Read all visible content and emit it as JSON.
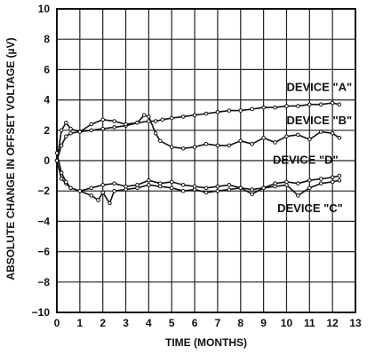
{
  "chart_data": {
    "type": "line",
    "title": "",
    "xlabel": "TIME (MONTHS)",
    "ylabel": "ABSOLUTE CHANGE IN OFFSET VOLTAGE (µV)",
    "xlim": [
      0,
      13
    ],
    "ylim": [
      -10,
      10
    ],
    "x_ticks": [
      "0",
      "1",
      "2",
      "3",
      "4",
      "5",
      "6",
      "7",
      "8",
      "9",
      "10",
      "11",
      "12",
      "13"
    ],
    "y_ticks": [
      "−10",
      "−8",
      "−6",
      "−4",
      "−2",
      "0",
      "2",
      "4",
      "6",
      "8",
      "10"
    ],
    "grid": true,
    "legend": "inline labels",
    "series": [
      {
        "name": "DEVICE \"A\"",
        "label_at": [
          10.0,
          4.6
        ],
        "x": [
          0,
          0.2,
          0.4,
          0.6,
          1.0,
          1.5,
          2.0,
          2.5,
          3.0,
          3.5,
          4.0,
          4.3,
          4.6,
          5.0,
          5.5,
          6.0,
          6.5,
          7.0,
          7.5,
          8.0,
          8.5,
          9.0,
          9.5,
          10.0,
          10.5,
          11.0,
          11.5,
          12.0,
          12.3
        ],
        "y": [
          0,
          1.0,
          1.6,
          1.8,
          1.9,
          2.0,
          2.1,
          2.2,
          2.3,
          2.5,
          2.6,
          2.6,
          2.7,
          2.8,
          2.9,
          3.0,
          3.1,
          3.2,
          3.3,
          3.3,
          3.4,
          3.5,
          3.5,
          3.6,
          3.6,
          3.7,
          3.7,
          3.8,
          3.7
        ]
      },
      {
        "name": "DEVICE \"B\"",
        "label_at": [
          10.0,
          2.4
        ],
        "x": [
          0,
          0.2,
          0.4,
          0.6,
          1.0,
          1.5,
          2.0,
          2.5,
          3.0,
          3.5,
          3.8,
          4.0,
          4.3,
          4.5,
          5.0,
          5.5,
          6.0,
          6.5,
          7.0,
          7.5,
          8.0,
          8.5,
          9.0,
          9.5,
          10.0,
          10.5,
          11.0,
          11.5,
          12.0,
          12.3
        ],
        "y": [
          0,
          2.0,
          2.5,
          2.1,
          1.9,
          2.4,
          2.7,
          2.6,
          2.4,
          2.5,
          3.0,
          2.9,
          1.8,
          1.3,
          0.9,
          0.8,
          0.9,
          1.1,
          1.0,
          1.0,
          1.3,
          1.1,
          1.5,
          1.2,
          1.6,
          1.7,
          1.4,
          1.9,
          1.8,
          1.5
        ]
      },
      {
        "name": "DEVICE \"C\"",
        "label_at": [
          9.6,
          -3.4
        ],
        "x": [
          0,
          0.2,
          0.4,
          0.6,
          1.0,
          1.5,
          1.8,
          2.0,
          2.3,
          2.5,
          3.0,
          3.5,
          4.0,
          4.5,
          5.0,
          5.5,
          6.0,
          6.5,
          7.0,
          7.5,
          8.0,
          8.5,
          9.0,
          9.5,
          10.0,
          10.5,
          11.0,
          11.5,
          12.0,
          12.3
        ],
        "y": [
          0,
          -1.2,
          -1.5,
          -1.8,
          -2.0,
          -2.3,
          -2.6,
          -2.1,
          -2.8,
          -2.0,
          -1.9,
          -1.8,
          -1.6,
          -1.7,
          -1.8,
          -2.0,
          -1.9,
          -2.1,
          -2.0,
          -1.9,
          -1.8,
          -1.9,
          -1.8,
          -1.7,
          -1.6,
          -2.3,
          -1.8,
          -1.5,
          -1.4,
          -1.3
        ]
      },
      {
        "name": "DEVICE \"D\"",
        "label_at": [
          9.4,
          -0.2
        ],
        "x": [
          0,
          0.2,
          0.4,
          0.6,
          1.0,
          1.5,
          2.0,
          2.5,
          3.0,
          3.5,
          4.0,
          4.5,
          5.0,
          5.5,
          6.0,
          6.5,
          7.0,
          7.5,
          8.0,
          8.5,
          9.0,
          9.5,
          10.0,
          10.5,
          11.0,
          11.5,
          12.0,
          12.3
        ],
        "y": [
          0.5,
          -0.8,
          -1.4,
          -1.8,
          -2.0,
          -1.8,
          -1.6,
          -1.5,
          -1.7,
          -1.6,
          -1.3,
          -1.5,
          -1.4,
          -1.6,
          -1.7,
          -1.8,
          -1.7,
          -1.6,
          -1.8,
          -2.2,
          -1.8,
          -1.5,
          -1.4,
          -1.5,
          -1.3,
          -1.2,
          -1.1,
          -1.0
        ]
      }
    ]
  }
}
